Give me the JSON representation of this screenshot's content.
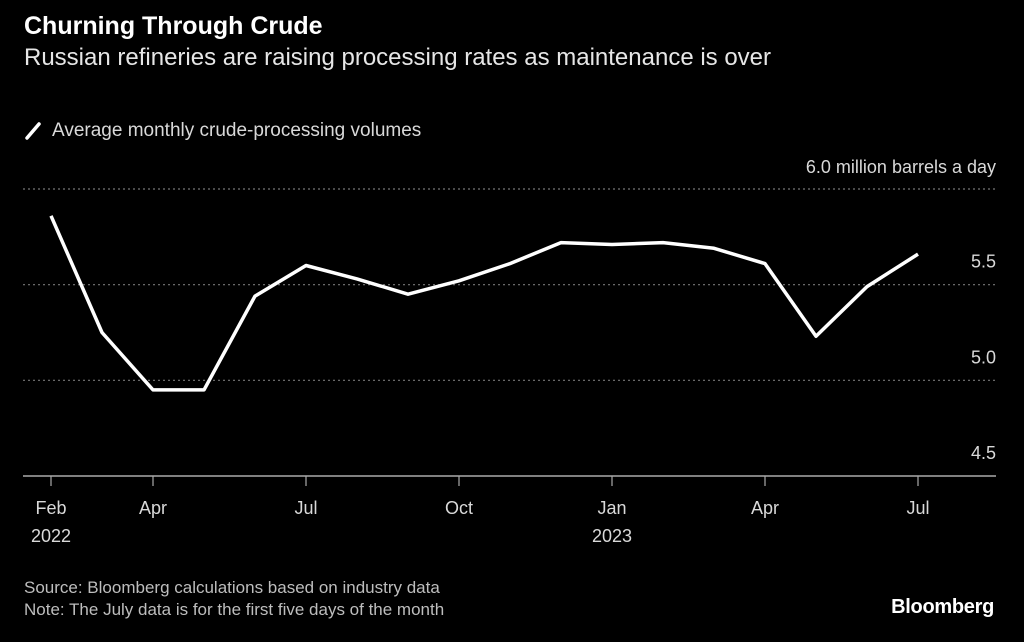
{
  "header": {
    "title": "Churning Through Crude",
    "subtitle": "Russian refineries are raising processing rates as maintenance is over"
  },
  "legend": {
    "label": "Average monthly crude-processing volumes",
    "icon": "line-swatch-icon"
  },
  "footer": {
    "source": "Source: Bloomberg calculations based on industry data",
    "note": "Note: The July data is for the first five days of the month",
    "logo": "Bloomberg"
  },
  "chart_data": {
    "type": "line",
    "title": "Churning Through Crude",
    "ylabel": "million barrels a day",
    "unit_label": "6.0 million barrels a day",
    "ylim": [
      4.5,
      6.0
    ],
    "yticks": [
      {
        "value": 6.0,
        "label": "6.0"
      },
      {
        "value": 5.5,
        "label": "5.5"
      },
      {
        "value": 5.0,
        "label": "5.0"
      },
      {
        "value": 4.5,
        "label": "4.5"
      }
    ],
    "xticks": [
      {
        "index": 0,
        "label": "Feb",
        "sub": "2022"
      },
      {
        "index": 2,
        "label": "Apr",
        "sub": ""
      },
      {
        "index": 5,
        "label": "Jul",
        "sub": ""
      },
      {
        "index": 8,
        "label": "Oct",
        "sub": ""
      },
      {
        "index": 11,
        "label": "Jan",
        "sub": "2023"
      },
      {
        "index": 14,
        "label": "Apr",
        "sub": ""
      },
      {
        "index": 17,
        "label": "Jul",
        "sub": ""
      }
    ],
    "x": [
      "2022-02",
      "2022-03",
      "2022-04",
      "2022-05",
      "2022-06",
      "2022-07",
      "2022-08",
      "2022-09",
      "2022-10",
      "2022-11",
      "2022-12",
      "2023-01",
      "2023-02",
      "2023-03",
      "2023-04",
      "2023-05",
      "2023-06",
      "2023-07"
    ],
    "series": [
      {
        "name": "Average monthly crude-processing volumes",
        "color": "#ffffff",
        "values": [
          5.86,
          5.25,
          4.95,
          4.95,
          5.44,
          5.6,
          5.53,
          5.45,
          5.52,
          5.61,
          5.72,
          5.71,
          5.72,
          5.69,
          5.61,
          5.23,
          5.49,
          5.66
        ]
      }
    ],
    "grid": true,
    "legend_position": "top-left"
  }
}
